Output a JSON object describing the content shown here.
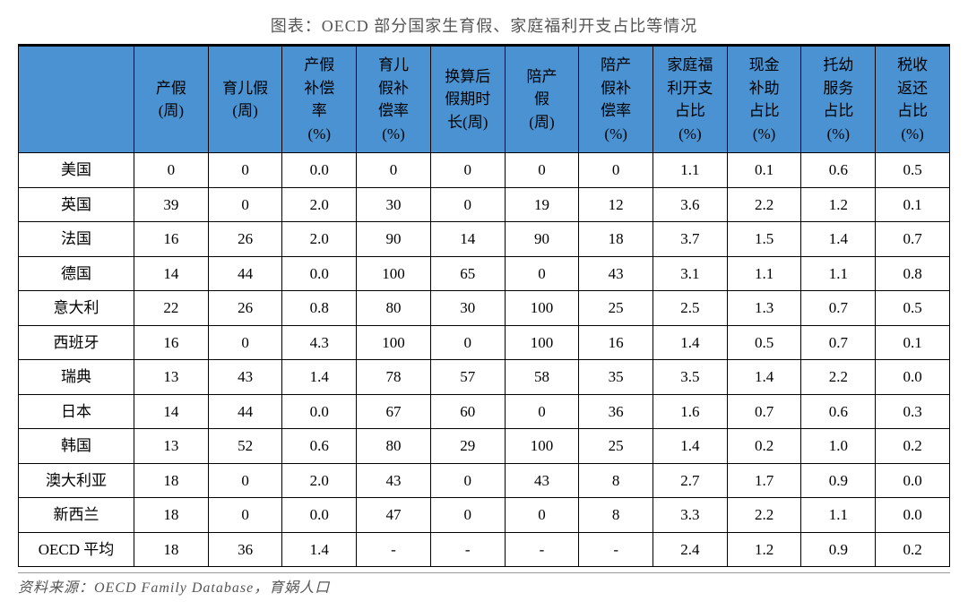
{
  "title": "图表：OECD 部分国家生育假、家庭福利开支占比等情况",
  "header_bg": "#4a92d1",
  "columns": [
    "",
    "产假\n(周)",
    "育儿假\n(周)",
    "产假\n补偿\n率\n(%)",
    "育儿\n假补\n偿率\n(%)",
    "换算后\n假期时\n长(周)",
    "陪产\n假\n(周)",
    "陪产\n假补\n偿率\n(%)",
    "家庭福\n利开支\n占比\n(%)",
    "现金\n补助\n占比\n(%)",
    "托幼\n服务\n占比\n(%)",
    "税收\n返还\n占比\n(%)"
  ],
  "rows": [
    [
      "美国",
      "0",
      "0",
      "0.0",
      "0",
      "0",
      "0",
      "0",
      "1.1",
      "0.1",
      "0.6",
      "0.5"
    ],
    [
      "英国",
      "39",
      "0",
      "2.0",
      "30",
      "0",
      "19",
      "12",
      "3.6",
      "2.2",
      "1.2",
      "0.1"
    ],
    [
      "法国",
      "16",
      "26",
      "2.0",
      "90",
      "14",
      "90",
      "18",
      "3.7",
      "1.5",
      "1.4",
      "0.7"
    ],
    [
      "德国",
      "14",
      "44",
      "0.0",
      "100",
      "65",
      "0",
      "43",
      "3.1",
      "1.1",
      "1.1",
      "0.8"
    ],
    [
      "意大利",
      "22",
      "26",
      "0.8",
      "80",
      "30",
      "100",
      "25",
      "2.5",
      "1.3",
      "0.7",
      "0.5"
    ],
    [
      "西班牙",
      "16",
      "0",
      "4.3",
      "100",
      "0",
      "100",
      "16",
      "1.4",
      "0.5",
      "0.7",
      "0.1"
    ],
    [
      "瑞典",
      "13",
      "43",
      "1.4",
      "78",
      "57",
      "58",
      "35",
      "3.5",
      "1.4",
      "2.2",
      "0.0"
    ],
    [
      "日本",
      "14",
      "44",
      "0.0",
      "67",
      "60",
      "0",
      "36",
      "1.6",
      "0.7",
      "0.6",
      "0.3"
    ],
    [
      "韩国",
      "13",
      "52",
      "0.6",
      "80",
      "29",
      "100",
      "25",
      "1.4",
      "0.2",
      "1.0",
      "0.2"
    ],
    [
      "澳大利亚",
      "18",
      "0",
      "2.0",
      "43",
      "0",
      "43",
      "8",
      "2.7",
      "1.7",
      "0.9",
      "0.0"
    ],
    [
      "新西兰",
      "18",
      "0",
      "0.0",
      "47",
      "0",
      "0",
      "8",
      "3.3",
      "2.2",
      "1.1",
      "0.0"
    ],
    [
      "OECD 平均",
      "18",
      "36",
      "1.4",
      "-",
      "-",
      "-",
      "-",
      "2.4",
      "1.2",
      "0.9",
      "0.2"
    ]
  ],
  "source": "资料来源：OECD Family Database，育娲人口"
}
